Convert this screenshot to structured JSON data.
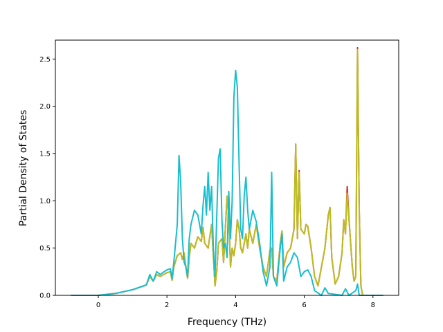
{
  "chart_data": {
    "type": "line",
    "xlabel": "Frequency (THz)",
    "ylabel": "Partial Density of States",
    "xlim": [
      -1.25,
      8.75
    ],
    "ylim": [
      0.0,
      2.7
    ],
    "xticks": [
      "0",
      "2",
      "4",
      "6",
      "8"
    ],
    "xtick_values": [
      0,
      2,
      4,
      6,
      8
    ],
    "yticks": [
      "0.0",
      "0.5",
      "1.0",
      "1.5",
      "2.0",
      "2.5"
    ],
    "ytick_values": [
      0.0,
      0.5,
      1.0,
      1.5,
      2.0,
      2.5
    ],
    "grid": false,
    "legend": "none",
    "series": [
      {
        "color": "#d62728",
        "points": [
          [
            -0.8,
            0.0
          ],
          [
            0.0,
            0.0
          ],
          [
            0.5,
            0.02
          ],
          [
            1.0,
            0.06
          ],
          [
            1.4,
            0.11
          ],
          [
            1.5,
            0.2
          ],
          [
            1.6,
            0.15
          ],
          [
            1.7,
            0.22
          ],
          [
            1.8,
            0.2
          ],
          [
            2.0,
            0.24
          ],
          [
            2.1,
            0.25
          ],
          [
            2.15,
            0.16
          ],
          [
            2.2,
            0.3
          ],
          [
            2.3,
            0.42
          ],
          [
            2.4,
            0.45
          ],
          [
            2.45,
            0.38
          ],
          [
            2.5,
            0.45
          ],
          [
            2.55,
            0.3
          ],
          [
            2.6,
            0.18
          ],
          [
            2.65,
            0.4
          ],
          [
            2.7,
            0.55
          ],
          [
            2.8,
            0.5
          ],
          [
            2.9,
            0.62
          ],
          [
            3.0,
            0.57
          ],
          [
            3.05,
            0.72
          ],
          [
            3.1,
            0.55
          ],
          [
            3.2,
            0.5
          ],
          [
            3.3,
            0.75
          ],
          [
            3.4,
            0.1
          ],
          [
            3.45,
            0.25
          ],
          [
            3.5,
            0.55
          ],
          [
            3.6,
            0.6
          ],
          [
            3.65,
            0.35
          ],
          [
            3.7,
            0.7
          ],
          [
            3.75,
            1.05
          ],
          [
            3.8,
            0.85
          ],
          [
            3.85,
            0.3
          ],
          [
            3.9,
            0.5
          ],
          [
            3.95,
            0.42
          ],
          [
            4.0,
            0.55
          ],
          [
            4.05,
            0.8
          ],
          [
            4.1,
            0.7
          ],
          [
            4.15,
            0.5
          ],
          [
            4.2,
            0.45
          ],
          [
            4.3,
            0.65
          ],
          [
            4.35,
            0.5
          ],
          [
            4.4,
            0.7
          ],
          [
            4.5,
            0.55
          ],
          [
            4.6,
            0.75
          ],
          [
            4.7,
            0.5
          ],
          [
            4.8,
            0.3
          ],
          [
            4.9,
            0.2
          ],
          [
            5.0,
            0.48
          ],
          [
            5.05,
            0.5
          ],
          [
            5.1,
            0.2
          ],
          [
            5.2,
            0.15
          ],
          [
            5.3,
            0.55
          ],
          [
            5.35,
            0.68
          ],
          [
            5.4,
            0.3
          ],
          [
            5.5,
            0.45
          ],
          [
            5.6,
            0.5
          ],
          [
            5.7,
            0.7
          ],
          [
            5.75,
            1.6
          ],
          [
            5.8,
            0.6
          ],
          [
            5.85,
            1.32
          ],
          [
            5.9,
            0.7
          ],
          [
            6.0,
            0.65
          ],
          [
            6.05,
            0.75
          ],
          [
            6.1,
            0.73
          ],
          [
            6.2,
            0.5
          ],
          [
            6.3,
            0.2
          ],
          [
            6.4,
            0.1
          ],
          [
            6.5,
            0.3
          ],
          [
            6.6,
            0.5
          ],
          [
            6.7,
            0.85
          ],
          [
            6.75,
            0.93
          ],
          [
            6.8,
            0.4
          ],
          [
            6.9,
            0.12
          ],
          [
            7.0,
            0.2
          ],
          [
            7.1,
            0.45
          ],
          [
            7.15,
            0.8
          ],
          [
            7.2,
            0.65
          ],
          [
            7.25,
            1.15
          ],
          [
            7.3,
            0.82
          ],
          [
            7.35,
            0.55
          ],
          [
            7.4,
            0.3
          ],
          [
            7.45,
            0.15
          ],
          [
            7.5,
            0.2
          ],
          [
            7.55,
            2.62
          ],
          [
            7.6,
            0.9
          ],
          [
            7.65,
            0.1
          ],
          [
            7.7,
            0.0
          ],
          [
            8.3,
            0.0
          ]
        ]
      },
      {
        "color": "#bcbd22",
        "points": [
          [
            -0.8,
            0.0
          ],
          [
            0.0,
            0.0
          ],
          [
            0.5,
            0.02
          ],
          [
            1.0,
            0.06
          ],
          [
            1.4,
            0.11
          ],
          [
            1.5,
            0.2
          ],
          [
            1.6,
            0.15
          ],
          [
            1.7,
            0.22
          ],
          [
            1.8,
            0.2
          ],
          [
            2.0,
            0.24
          ],
          [
            2.1,
            0.25
          ],
          [
            2.15,
            0.16
          ],
          [
            2.2,
            0.3
          ],
          [
            2.3,
            0.42
          ],
          [
            2.4,
            0.45
          ],
          [
            2.45,
            0.38
          ],
          [
            2.5,
            0.45
          ],
          [
            2.55,
            0.3
          ],
          [
            2.6,
            0.18
          ],
          [
            2.65,
            0.4
          ],
          [
            2.7,
            0.55
          ],
          [
            2.8,
            0.5
          ],
          [
            2.9,
            0.62
          ],
          [
            3.0,
            0.57
          ],
          [
            3.05,
            0.72
          ],
          [
            3.1,
            0.55
          ],
          [
            3.2,
            0.5
          ],
          [
            3.3,
            0.75
          ],
          [
            3.4,
            0.1
          ],
          [
            3.45,
            0.25
          ],
          [
            3.5,
            0.55
          ],
          [
            3.6,
            0.6
          ],
          [
            3.65,
            0.35
          ],
          [
            3.7,
            0.7
          ],
          [
            3.75,
            1.05
          ],
          [
            3.8,
            0.85
          ],
          [
            3.85,
            0.3
          ],
          [
            3.9,
            0.5
          ],
          [
            3.95,
            0.42
          ],
          [
            4.0,
            0.55
          ],
          [
            4.05,
            0.8
          ],
          [
            4.1,
            0.7
          ],
          [
            4.15,
            0.5
          ],
          [
            4.2,
            0.45
          ],
          [
            4.3,
            0.65
          ],
          [
            4.35,
            0.5
          ],
          [
            4.4,
            0.7
          ],
          [
            4.5,
            0.55
          ],
          [
            4.6,
            0.75
          ],
          [
            4.7,
            0.5
          ],
          [
            4.8,
            0.3
          ],
          [
            4.9,
            0.2
          ],
          [
            5.0,
            0.48
          ],
          [
            5.05,
            0.5
          ],
          [
            5.1,
            0.2
          ],
          [
            5.2,
            0.15
          ],
          [
            5.3,
            0.55
          ],
          [
            5.35,
            0.68
          ],
          [
            5.4,
            0.3
          ],
          [
            5.5,
            0.45
          ],
          [
            5.6,
            0.5
          ],
          [
            5.7,
            0.7
          ],
          [
            5.75,
            1.6
          ],
          [
            5.8,
            0.6
          ],
          [
            5.85,
            1.3
          ],
          [
            5.9,
            0.7
          ],
          [
            6.0,
            0.65
          ],
          [
            6.05,
            0.75
          ],
          [
            6.1,
            0.73
          ],
          [
            6.2,
            0.5
          ],
          [
            6.3,
            0.2
          ],
          [
            6.4,
            0.1
          ],
          [
            6.5,
            0.3
          ],
          [
            6.6,
            0.5
          ],
          [
            6.7,
            0.85
          ],
          [
            6.75,
            0.93
          ],
          [
            6.8,
            0.4
          ],
          [
            6.9,
            0.12
          ],
          [
            7.0,
            0.2
          ],
          [
            7.1,
            0.45
          ],
          [
            7.15,
            0.8
          ],
          [
            7.2,
            0.65
          ],
          [
            7.25,
            1.08
          ],
          [
            7.3,
            0.8
          ],
          [
            7.35,
            0.55
          ],
          [
            7.4,
            0.3
          ],
          [
            7.45,
            0.15
          ],
          [
            7.5,
            0.2
          ],
          [
            7.55,
            2.6
          ],
          [
            7.6,
            0.9
          ],
          [
            7.65,
            0.1
          ],
          [
            7.7,
            0.0
          ],
          [
            8.3,
            0.0
          ]
        ]
      },
      {
        "color": "#17becf",
        "points": [
          [
            -0.8,
            0.0
          ],
          [
            0.0,
            0.0
          ],
          [
            0.5,
            0.02
          ],
          [
            1.0,
            0.06
          ],
          [
            1.4,
            0.11
          ],
          [
            1.5,
            0.22
          ],
          [
            1.6,
            0.15
          ],
          [
            1.7,
            0.25
          ],
          [
            1.8,
            0.22
          ],
          [
            2.0,
            0.27
          ],
          [
            2.1,
            0.28
          ],
          [
            2.15,
            0.18
          ],
          [
            2.2,
            0.35
          ],
          [
            2.3,
            0.75
          ],
          [
            2.35,
            1.48
          ],
          [
            2.4,
            1.2
          ],
          [
            2.45,
            0.6
          ],
          [
            2.5,
            0.35
          ],
          [
            2.55,
            0.3
          ],
          [
            2.6,
            0.2
          ],
          [
            2.65,
            0.6
          ],
          [
            2.7,
            0.75
          ],
          [
            2.8,
            0.9
          ],
          [
            2.9,
            0.85
          ],
          [
            3.0,
            0.65
          ],
          [
            3.05,
            0.95
          ],
          [
            3.1,
            1.15
          ],
          [
            3.15,
            0.85
          ],
          [
            3.2,
            1.3
          ],
          [
            3.25,
            0.9
          ],
          [
            3.3,
            1.15
          ],
          [
            3.35,
            0.5
          ],
          [
            3.4,
            0.2
          ],
          [
            3.5,
            1.45
          ],
          [
            3.55,
            1.55
          ],
          [
            3.6,
            0.8
          ],
          [
            3.65,
            0.5
          ],
          [
            3.7,
            0.55
          ],
          [
            3.75,
            0.4
          ],
          [
            3.8,
            1.1
          ],
          [
            3.85,
            0.6
          ],
          [
            3.9,
            1.0
          ],
          [
            3.95,
            2.1
          ],
          [
            4.0,
            2.38
          ],
          [
            4.05,
            2.2
          ],
          [
            4.1,
            1.4
          ],
          [
            4.15,
            0.7
          ],
          [
            4.2,
            0.6
          ],
          [
            4.25,
            1.05
          ],
          [
            4.3,
            1.25
          ],
          [
            4.35,
            0.9
          ],
          [
            4.4,
            0.7
          ],
          [
            4.5,
            0.9
          ],
          [
            4.6,
            0.78
          ],
          [
            4.7,
            0.55
          ],
          [
            4.8,
            0.25
          ],
          [
            4.9,
            0.1
          ],
          [
            5.0,
            0.3
          ],
          [
            5.05,
            1.3
          ],
          [
            5.1,
            0.2
          ],
          [
            5.2,
            0.1
          ],
          [
            5.3,
            0.5
          ],
          [
            5.35,
            0.65
          ],
          [
            5.4,
            0.15
          ],
          [
            5.5,
            0.3
          ],
          [
            5.6,
            0.35
          ],
          [
            5.7,
            0.45
          ],
          [
            5.8,
            0.4
          ],
          [
            5.9,
            0.2
          ],
          [
            6.0,
            0.25
          ],
          [
            6.1,
            0.27
          ],
          [
            6.2,
            0.2
          ],
          [
            6.3,
            0.05
          ],
          [
            6.5,
            0.0
          ],
          [
            6.6,
            0.08
          ],
          [
            6.7,
            0.02
          ],
          [
            7.1,
            0.0
          ],
          [
            7.2,
            0.07
          ],
          [
            7.3,
            0.0
          ],
          [
            7.5,
            0.05
          ],
          [
            7.55,
            0.12
          ],
          [
            7.6,
            0.0
          ],
          [
            8.3,
            0.0
          ]
        ]
      }
    ]
  }
}
